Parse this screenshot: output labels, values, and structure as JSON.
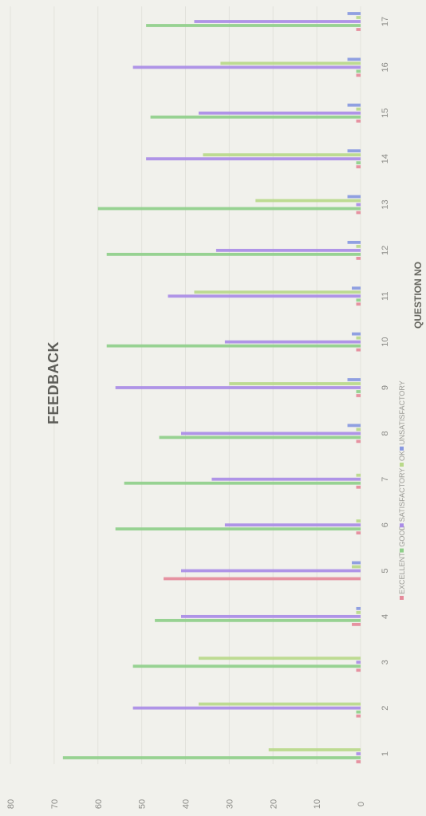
{
  "chart_data": {
    "type": "bar",
    "orientation": "horizontal",
    "title": "FEEDBACK",
    "xlabel": "QUESTION NO",
    "ylabel": "",
    "ylim": [
      0,
      80
    ],
    "yticks": [
      0,
      10,
      20,
      30,
      40,
      50,
      60,
      70,
      80
    ],
    "grid": true,
    "legend_position": "bottom",
    "categories": [
      "1",
      "2",
      "3",
      "4",
      "5",
      "6",
      "7",
      "8",
      "9",
      "10",
      "11",
      "12",
      "13",
      "14",
      "15",
      "16",
      "17"
    ],
    "series": [
      {
        "name": "EXCELLENT",
        "color": "#e58a9a",
        "values": [
          1,
          1,
          1,
          2,
          45,
          1,
          1,
          1,
          1,
          1,
          1,
          1,
          1,
          1,
          1,
          1,
          1
        ]
      },
      {
        "name": "GOOD",
        "color": "#8fcf8a",
        "values": [
          68,
          1,
          52,
          47,
          0,
          56,
          54,
          46,
          1,
          58,
          1,
          58,
          60,
          1,
          48,
          1,
          49
        ]
      },
      {
        "name": "SATISFACTORY",
        "color": "#a98ce6",
        "values": [
          1,
          52,
          1,
          41,
          41,
          31,
          34,
          41,
          56,
          31,
          44,
          33,
          1,
          49,
          37,
          52,
          38
        ]
      },
      {
        "name": "OK",
        "color": "#b9d98a",
        "values": [
          21,
          37,
          37,
          1,
          2,
          1,
          1,
          1,
          30,
          1,
          38,
          1,
          24,
          36,
          1,
          32,
          1
        ]
      },
      {
        "name": "UNSATISFACTORY",
        "color": "#8899e0",
        "values": [
          0,
          0,
          0,
          1,
          2,
          0,
          0,
          3,
          3,
          2,
          2,
          3,
          3,
          3,
          3,
          3,
          3
        ]
      }
    ]
  }
}
